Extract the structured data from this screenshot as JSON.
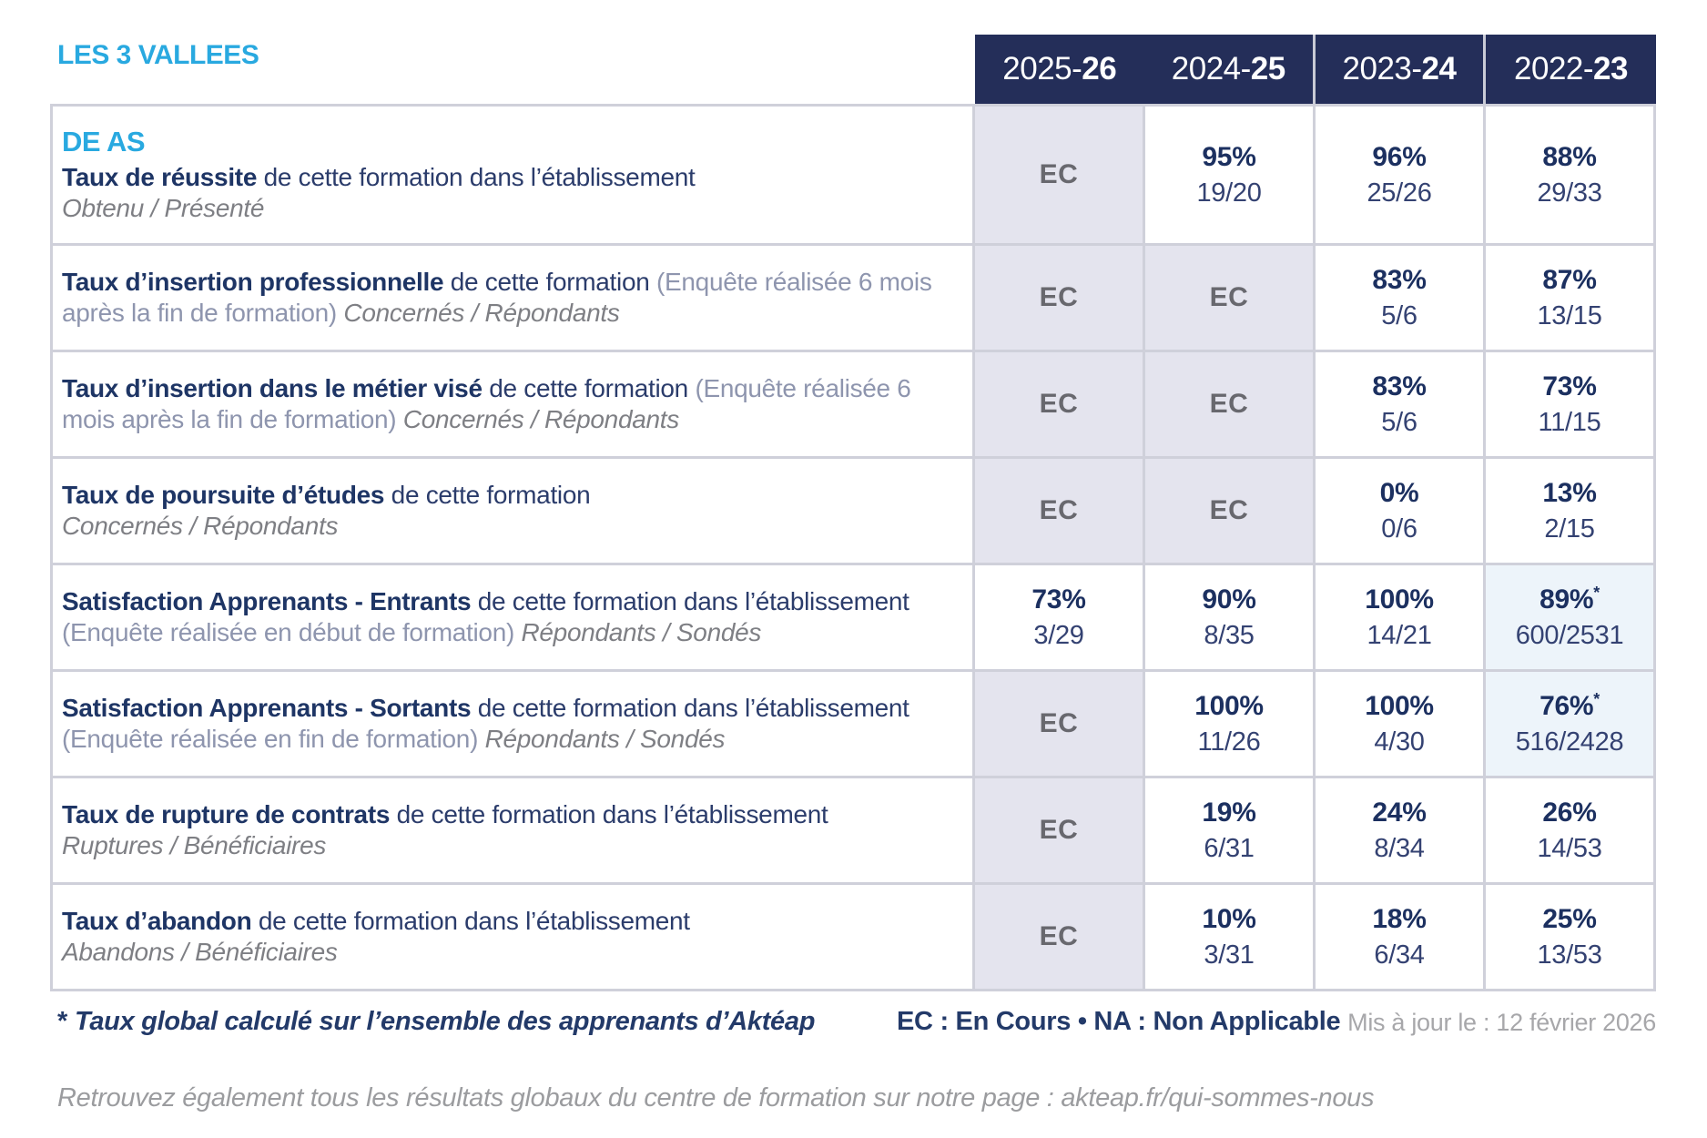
{
  "brand": "LES 3 VALLEES",
  "columns": [
    {
      "prefix": "2025-",
      "suffix": "26"
    },
    {
      "prefix": "2024-",
      "suffix": "25"
    },
    {
      "prefix": "2023-",
      "suffix": "24"
    },
    {
      "prefix": "2022-",
      "suffix": "23"
    }
  ],
  "header_groups": [
    [
      0,
      1
    ],
    [
      2
    ],
    [
      3
    ]
  ],
  "rows": [
    {
      "heading": "DE AS",
      "bold": "Taux de réussite",
      "normal": "de cette formation dans l’établissement",
      "paren": "",
      "italic": "Obtenu / Présenté",
      "italic_break": true,
      "values": [
        {
          "ec": "EC"
        },
        {
          "pct": "95%",
          "frac": "19/20"
        },
        {
          "pct": "96%",
          "frac": "25/26"
        },
        {
          "pct": "88%",
          "frac": "29/33"
        }
      ]
    },
    {
      "bold": "Taux d’insertion professionnelle",
      "normal": "de cette formation",
      "paren": "(Enquête réalisée 6 mois après la fin de formation)",
      "italic": "Concernés / Répondants",
      "italic_break": false,
      "values": [
        {
          "ec": "EC"
        },
        {
          "ec": "EC"
        },
        {
          "pct": "83%",
          "frac": "5/6"
        },
        {
          "pct": "87%",
          "frac": "13/15"
        }
      ]
    },
    {
      "bold": "Taux d’insertion dans le métier visé",
      "normal": "de cette formation",
      "paren": "(Enquête réalisée 6 mois après la fin de formation)",
      "italic": "Concernés / Répondants",
      "italic_break": false,
      "values": [
        {
          "ec": "EC"
        },
        {
          "ec": "EC"
        },
        {
          "pct": "83%",
          "frac": "5/6"
        },
        {
          "pct": "73%",
          "frac": "11/15"
        }
      ]
    },
    {
      "bold": "Taux de poursuite d’études",
      "normal": "de cette formation",
      "paren": "",
      "italic": "Concernés / Répondants",
      "italic_break": true,
      "values": [
        {
          "ec": "EC"
        },
        {
          "ec": "EC"
        },
        {
          "pct": "0%",
          "frac": "0/6"
        },
        {
          "pct": "13%",
          "frac": "2/15"
        }
      ]
    },
    {
      "bold": "Satisfaction Apprenants - Entrants",
      "normal": "de cette formation dans l’établissement",
      "paren": "(Enquête réalisée en début de formation)",
      "italic": "Répondants / Sondés",
      "italic_break": false,
      "values": [
        {
          "pct": "73%",
          "frac": "3/29"
        },
        {
          "pct": "90%",
          "frac": "8/35"
        },
        {
          "pct": "100%",
          "frac": "14/21"
        },
        {
          "pct": "89%",
          "frac": "600/2531",
          "star": true,
          "hl": true
        }
      ]
    },
    {
      "bold": "Satisfaction Apprenants - Sortants",
      "normal": "de cette formation dans l’établissement",
      "paren": "(Enquête réalisée en fin de formation)",
      "italic": "Répondants / Sondés",
      "italic_break": false,
      "values": [
        {
          "ec": "EC"
        },
        {
          "pct": "100%",
          "frac": "11/26"
        },
        {
          "pct": "100%",
          "frac": "4/30"
        },
        {
          "pct": "76%",
          "frac": "516/2428",
          "star": true,
          "hl": true
        }
      ]
    },
    {
      "bold": "Taux de rupture de contrats",
      "normal": "de cette formation dans l’établissement",
      "paren": "",
      "italic": "Ruptures / Bénéficiaires",
      "italic_break": true,
      "values": [
        {
          "ec": "EC"
        },
        {
          "pct": "19%",
          "frac": "6/31"
        },
        {
          "pct": "24%",
          "frac": "8/34"
        },
        {
          "pct": "26%",
          "frac": "14/53"
        }
      ]
    },
    {
      "bold": "Taux d’abandon",
      "normal": "de cette formation dans l’établissement",
      "paren": "",
      "italic": "Abandons / Bénéficiaires",
      "italic_break": true,
      "values": [
        {
          "ec": "EC"
        },
        {
          "pct": "10%",
          "frac": "3/31"
        },
        {
          "pct": "18%",
          "frac": "6/34"
        },
        {
          "pct": "25%",
          "frac": "13/53"
        }
      ]
    }
  ],
  "footer": {
    "footnote_mark": "*",
    "footnote": "Taux global calculé sur l’ensemble des apprenants d’Aktéap",
    "legend": "EC : En Cours  •  NA : Non Applicable",
    "updated": "Mis à jour le : 12 février 2026",
    "info": "Retrouvez également tous les résultats globaux du centre de formation sur notre page : akteap.fr/qui-sommes-nous"
  },
  "colors": {
    "accent_blue": "#29A9E0",
    "header_bg": "#242E59",
    "navy_text": "#1E3565",
    "ec_cell_bg": "#E4E4EE",
    "highlight_cell_bg": "#EDF4FA",
    "grid_line": "#CFD0DA",
    "ec_text": "#68686E"
  }
}
